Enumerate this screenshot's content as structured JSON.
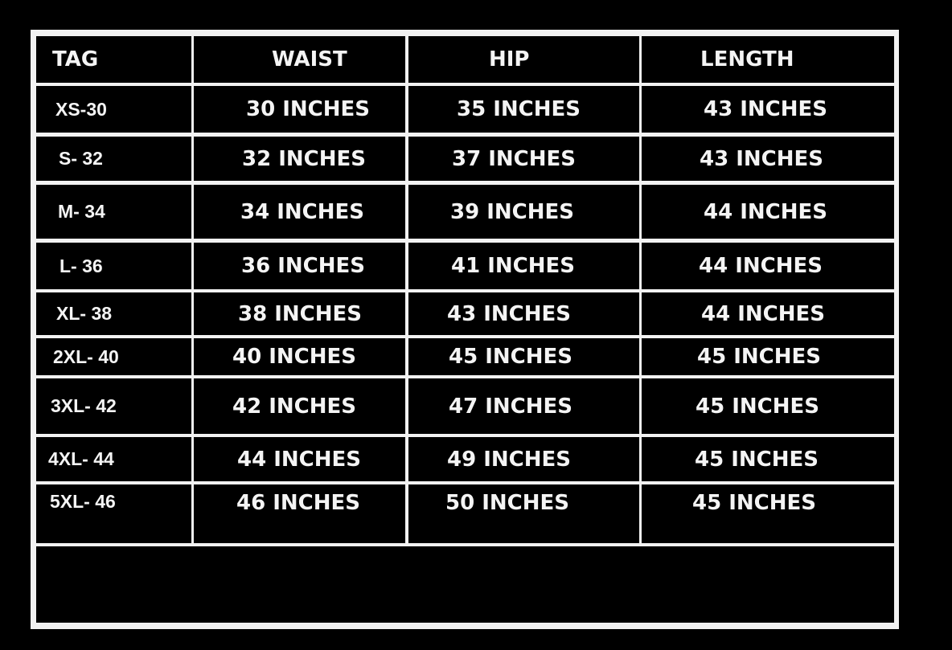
{
  "table": {
    "headers": [
      "TAG",
      "WAIST",
      "HIP",
      "LENGTH"
    ],
    "rows": [
      [
        "XS-30",
        "30 INCHES",
        "35 INCHES",
        "43 INCHES"
      ],
      [
        "S- 32",
        "32 INCHES",
        "37 INCHES",
        "43 INCHES"
      ],
      [
        "M- 34",
        "34 INCHES",
        "39 INCHES",
        "44 INCHES"
      ],
      [
        "L- 36",
        "36 INCHES",
        "41 INCHES",
        "44 INCHES"
      ],
      [
        "XL- 38",
        "38 INCHES",
        "43 INCHES",
        "44 INCHES"
      ],
      [
        "2XL- 40",
        "40 INCHES",
        "45 INCHES",
        "45 INCHES"
      ],
      [
        "3XL- 42",
        "42 INCHES",
        "47 INCHES",
        "45 INCHES"
      ],
      [
        "4XL- 44",
        "44 INCHES",
        "49 INCHES",
        "45 INCHES"
      ],
      [
        "5XL- 46",
        "46 INCHES",
        "50 INCHES",
        "45 INCHES"
      ]
    ]
  },
  "colors": {
    "background": "#000000",
    "grid_lines": "#f2f2f2",
    "text": "#f4f4f4"
  }
}
